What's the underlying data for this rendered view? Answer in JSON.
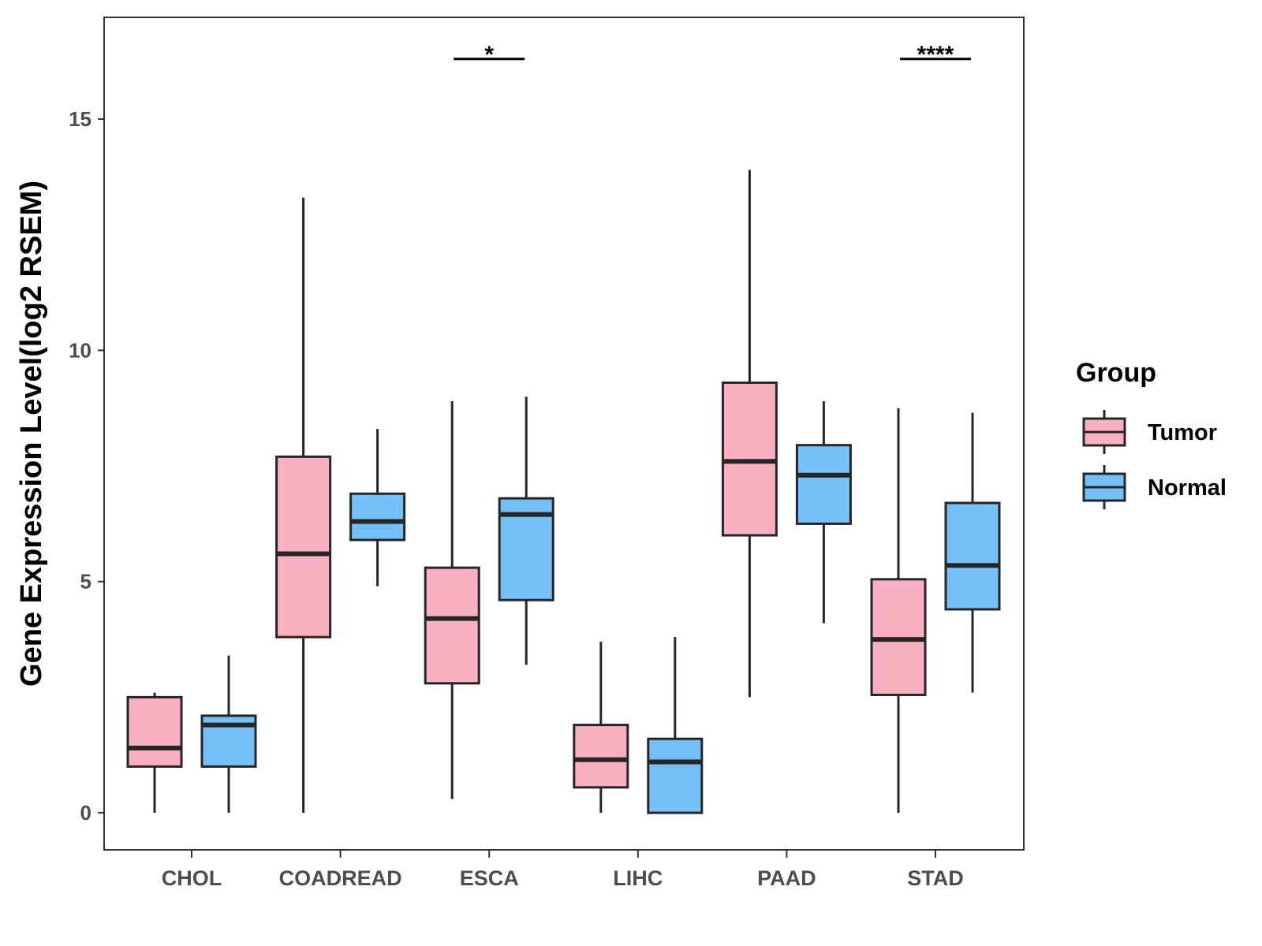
{
  "chart_data": {
    "type": "boxplot",
    "title": "",
    "xlabel": "",
    "ylabel": "Gene Expression Level(log2 RSEM)",
    "ylim": [
      -0.8,
      17.2
    ],
    "yticks": [
      0,
      5,
      10,
      15
    ],
    "ytick_labels": [
      "0",
      "5",
      "10",
      "15"
    ],
    "grid": false,
    "categories": [
      "CHOL",
      "COADREAD",
      "ESCA",
      "LIHC",
      "PAAD",
      "STAD"
    ],
    "legend": {
      "title": "Group",
      "position": "right",
      "entries": [
        "Tumor",
        "Normal"
      ]
    },
    "series": [
      {
        "name": "Tumor",
        "color": "#fbb0c2",
        "boxes": [
          {
            "min": 0.0,
            "q1": 1.0,
            "median": 1.4,
            "q3": 2.5,
            "max": 2.6
          },
          {
            "min": 0.0,
            "q1": 3.8,
            "median": 5.6,
            "q3": 7.7,
            "max": 13.3
          },
          {
            "min": 0.3,
            "q1": 2.8,
            "median": 4.2,
            "q3": 5.3,
            "max": 8.9
          },
          {
            "min": 0.0,
            "q1": 0.55,
            "median": 1.15,
            "q3": 1.9,
            "max": 3.7
          },
          {
            "min": 2.5,
            "q1": 6.0,
            "median": 7.6,
            "q3": 9.3,
            "max": 13.9
          },
          {
            "min": 0.0,
            "q1": 2.55,
            "median": 3.75,
            "q3": 5.05,
            "max": 8.75
          }
        ]
      },
      {
        "name": "Normal",
        "color": "#75c0f8",
        "boxes": [
          {
            "min": 0.0,
            "q1": 1.0,
            "median": 1.9,
            "q3": 2.1,
            "max": 3.4
          },
          {
            "min": 4.9,
            "q1": 5.9,
            "median": 6.3,
            "q3": 6.9,
            "max": 8.3
          },
          {
            "min": 3.2,
            "q1": 4.6,
            "median": 6.45,
            "q3": 6.8,
            "max": 9.0
          },
          {
            "min": 0.0,
            "q1": 0.0,
            "median": 1.1,
            "q3": 1.6,
            "max": 3.8
          },
          {
            "min": 4.1,
            "q1": 6.25,
            "median": 7.3,
            "q3": 7.95,
            "max": 8.9
          },
          {
            "min": 2.6,
            "q1": 4.4,
            "median": 5.35,
            "q3": 6.7,
            "max": 8.65
          }
        ]
      }
    ],
    "significance": [
      {
        "category": "ESCA",
        "label": "*",
        "y": 16.3
      },
      {
        "category": "STAD",
        "label": "****",
        "y": 16.3
      }
    ]
  }
}
